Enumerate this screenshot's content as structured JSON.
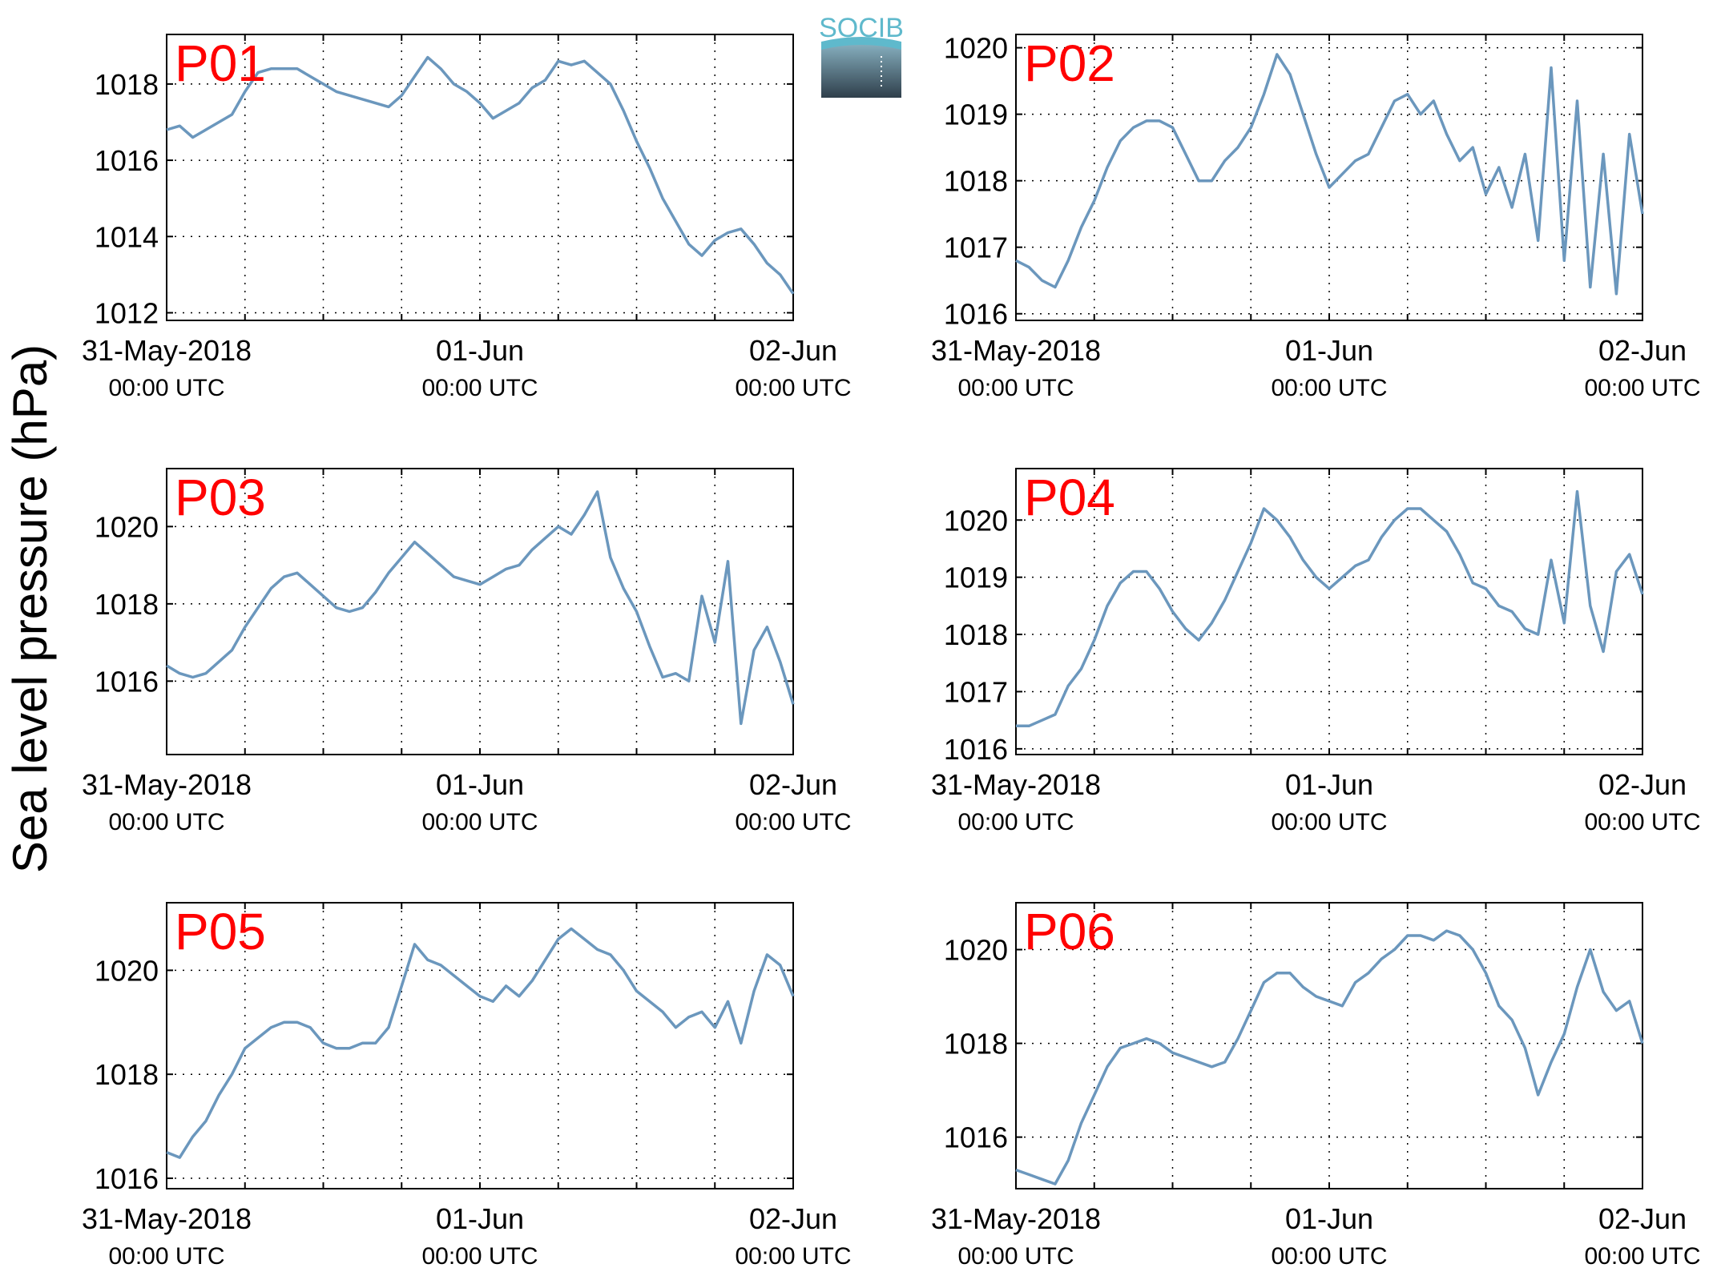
{
  "figure": {
    "ylabel": "Sea level pressure (hPa)",
    "logo_text": "SOCIB",
    "line_color": "#6b97bd",
    "label_color": "#ff0000"
  },
  "chart_data": [
    {
      "type": "line",
      "title": "P01",
      "xlabels": [
        "31-May-2018",
        "01-Jun",
        "02-Jun"
      ],
      "xsublabels": [
        "00:00 UTC",
        "00:00 UTC",
        "00:00 UTC"
      ],
      "xlim": [
        0,
        48
      ],
      "ylim": [
        1011.8,
        1019.3
      ],
      "yticks": [
        1012,
        1014,
        1016,
        1018
      ],
      "grid": true,
      "x": [
        0,
        1,
        2,
        3,
        4,
        5,
        6,
        7,
        8,
        9,
        10,
        11,
        12,
        13,
        14,
        15,
        16,
        17,
        18,
        19,
        20,
        21,
        22,
        23,
        24,
        25,
        26,
        27,
        28,
        29,
        30,
        31,
        32,
        33,
        34,
        35,
        36,
        37,
        38,
        39,
        40,
        41,
        42,
        43,
        44,
        45,
        46,
        47,
        48
      ],
      "y": [
        1016.8,
        1016.9,
        1016.6,
        1016.8,
        1017.0,
        1017.2,
        1017.8,
        1018.3,
        1018.4,
        1018.4,
        1018.4,
        1018.2,
        1018.0,
        1017.8,
        1017.7,
        1017.6,
        1017.5,
        1017.4,
        1017.7,
        1018.2,
        1018.7,
        1018.4,
        1018.0,
        1017.8,
        1017.5,
        1017.1,
        1017.3,
        1017.5,
        1017.9,
        1018.1,
        1018.6,
        1018.5,
        1018.6,
        1018.3,
        1018.0,
        1017.3,
        1016.5,
        1015.8,
        1015.0,
        1014.4,
        1013.8,
        1013.5,
        1013.9,
        1014.1,
        1014.2,
        1013.8,
        1013.3,
        1013.0,
        1012.5
      ]
    },
    {
      "type": "line",
      "title": "P02",
      "xlabels": [
        "31-May-2018",
        "01-Jun",
        "02-Jun"
      ],
      "xsublabels": [
        "00:00 UTC",
        "00:00 UTC",
        "00:00 UTC"
      ],
      "xlim": [
        0,
        48
      ],
      "ylim": [
        1015.9,
        1020.2
      ],
      "yticks": [
        1016,
        1017,
        1018,
        1019,
        1020
      ],
      "grid": true,
      "x": [
        0,
        1,
        2,
        3,
        4,
        5,
        6,
        7,
        8,
        9,
        10,
        11,
        12,
        13,
        14,
        15,
        16,
        17,
        18,
        19,
        20,
        21,
        22,
        23,
        24,
        25,
        26,
        27,
        28,
        29,
        30,
        31,
        32,
        33,
        34,
        35,
        36,
        37,
        38,
        39,
        40,
        41,
        42,
        43,
        44,
        45,
        46,
        47,
        48
      ],
      "y": [
        1016.8,
        1016.7,
        1016.5,
        1016.4,
        1016.8,
        1017.3,
        1017.7,
        1018.2,
        1018.6,
        1018.8,
        1018.9,
        1018.9,
        1018.8,
        1018.4,
        1018.0,
        1018.0,
        1018.3,
        1018.5,
        1018.8,
        1019.3,
        1019.9,
        1019.6,
        1019.0,
        1018.4,
        1017.9,
        1018.1,
        1018.3,
        1018.4,
        1018.8,
        1019.2,
        1019.3,
        1019.0,
        1019.2,
        1018.7,
        1018.3,
        1018.5,
        1017.8,
        1018.2,
        1017.6,
        1018.4,
        1017.1,
        1019.7,
        1016.8,
        1019.2,
        1016.4,
        1018.4,
        1016.3,
        1018.7,
        1017.5
      ]
    },
    {
      "type": "line",
      "title": "P03",
      "xlabels": [
        "31-May-2018",
        "01-Jun",
        "02-Jun"
      ],
      "xsublabels": [
        "00:00 UTC",
        "00:00 UTC",
        "00:00 UTC"
      ],
      "xlim": [
        0,
        48
      ],
      "ylim": [
        1014.1,
        1021.5
      ],
      "yticks": [
        1016,
        1018,
        1020
      ],
      "grid": true,
      "x": [
        0,
        1,
        2,
        3,
        4,
        5,
        6,
        7,
        8,
        9,
        10,
        11,
        12,
        13,
        14,
        15,
        16,
        17,
        18,
        19,
        20,
        21,
        22,
        23,
        24,
        25,
        26,
        27,
        28,
        29,
        30,
        31,
        32,
        33,
        34,
        35,
        36,
        37,
        38,
        39,
        40,
        41,
        42,
        43,
        44,
        45,
        46,
        47,
        48
      ],
      "y": [
        1016.4,
        1016.2,
        1016.1,
        1016.2,
        1016.5,
        1016.8,
        1017.4,
        1017.9,
        1018.4,
        1018.7,
        1018.8,
        1018.5,
        1018.2,
        1017.9,
        1017.8,
        1017.9,
        1018.3,
        1018.8,
        1019.2,
        1019.6,
        1019.3,
        1019.0,
        1018.7,
        1018.6,
        1018.5,
        1018.7,
        1018.9,
        1019.0,
        1019.4,
        1019.7,
        1020.0,
        1019.8,
        1020.3,
        1020.9,
        1019.2,
        1018.4,
        1017.8,
        1016.9,
        1016.1,
        1016.2,
        1016.0,
        1018.2,
        1017.0,
        1019.1,
        1014.9,
        1016.8,
        1017.4,
        1016.5,
        1015.4
      ]
    },
    {
      "type": "line",
      "title": "P04",
      "xlabels": [
        "31-May-2018",
        "01-Jun",
        "02-Jun"
      ],
      "xsublabels": [
        "00:00 UTC",
        "00:00 UTC",
        "00:00 UTC"
      ],
      "xlim": [
        0,
        48
      ],
      "ylim": [
        1015.9,
        1020.9
      ],
      "yticks": [
        1016,
        1017,
        1018,
        1019,
        1020
      ],
      "grid": true,
      "x": [
        0,
        1,
        2,
        3,
        4,
        5,
        6,
        7,
        8,
        9,
        10,
        11,
        12,
        13,
        14,
        15,
        16,
        17,
        18,
        19,
        20,
        21,
        22,
        23,
        24,
        25,
        26,
        27,
        28,
        29,
        30,
        31,
        32,
        33,
        34,
        35,
        36,
        37,
        38,
        39,
        40,
        41,
        42,
        43,
        44,
        45,
        46,
        47,
        48
      ],
      "y": [
        1016.4,
        1016.4,
        1016.5,
        1016.6,
        1017.1,
        1017.4,
        1017.9,
        1018.5,
        1018.9,
        1019.1,
        1019.1,
        1018.8,
        1018.4,
        1018.1,
        1017.9,
        1018.2,
        1018.6,
        1019.1,
        1019.6,
        1020.2,
        1020.0,
        1019.7,
        1019.3,
        1019.0,
        1018.8,
        1019.0,
        1019.2,
        1019.3,
        1019.7,
        1020.0,
        1020.2,
        1020.2,
        1020.0,
        1019.8,
        1019.4,
        1018.9,
        1018.8,
        1018.5,
        1018.4,
        1018.1,
        1018.0,
        1019.3,
        1018.2,
        1020.5,
        1018.5,
        1017.7,
        1019.1,
        1019.4,
        1018.7
      ]
    },
    {
      "type": "line",
      "title": "P05",
      "xlabels": [
        "31-May-2018",
        "01-Jun",
        "02-Jun"
      ],
      "xsublabels": [
        "00:00 UTC",
        "00:00 UTC",
        "00:00 UTC"
      ],
      "xlim": [
        0,
        48
      ],
      "ylim": [
        1015.8,
        1021.3
      ],
      "yticks": [
        1016,
        1018,
        1020
      ],
      "grid": true,
      "x": [
        0,
        1,
        2,
        3,
        4,
        5,
        6,
        7,
        8,
        9,
        10,
        11,
        12,
        13,
        14,
        15,
        16,
        17,
        18,
        19,
        20,
        21,
        22,
        23,
        24,
        25,
        26,
        27,
        28,
        29,
        30,
        31,
        32,
        33,
        34,
        35,
        36,
        37,
        38,
        39,
        40,
        41,
        42,
        43,
        44,
        45,
        46,
        47,
        48
      ],
      "y": [
        1016.5,
        1016.4,
        1016.8,
        1017.1,
        1017.6,
        1018.0,
        1018.5,
        1018.7,
        1018.9,
        1019.0,
        1019.0,
        1018.9,
        1018.6,
        1018.5,
        1018.5,
        1018.6,
        1018.6,
        1018.9,
        1019.7,
        1020.5,
        1020.2,
        1020.1,
        1019.9,
        1019.7,
        1019.5,
        1019.4,
        1019.7,
        1019.5,
        1019.8,
        1020.2,
        1020.6,
        1020.8,
        1020.6,
        1020.4,
        1020.3,
        1020.0,
        1019.6,
        1019.4,
        1019.2,
        1018.9,
        1019.1,
        1019.2,
        1018.9,
        1019.4,
        1018.6,
        1019.6,
        1020.3,
        1020.1,
        1019.5
      ]
    },
    {
      "type": "line",
      "title": "P06",
      "xlabels": [
        "31-May-2018",
        "01-Jun",
        "02-Jun"
      ],
      "xsublabels": [
        "00:00 UTC",
        "00:00 UTC",
        "00:00 UTC"
      ],
      "xlim": [
        0,
        48
      ],
      "ylim": [
        1014.9,
        1021.0
      ],
      "yticks": [
        1016,
        1018,
        1020
      ],
      "grid": true,
      "x": [
        0,
        1,
        2,
        3,
        4,
        5,
        6,
        7,
        8,
        9,
        10,
        11,
        12,
        13,
        14,
        15,
        16,
        17,
        18,
        19,
        20,
        21,
        22,
        23,
        24,
        25,
        26,
        27,
        28,
        29,
        30,
        31,
        32,
        33,
        34,
        35,
        36,
        37,
        38,
        39,
        40,
        41,
        42,
        43,
        44,
        45,
        46,
        47,
        48
      ],
      "y": [
        1015.3,
        1015.2,
        1015.1,
        1015.0,
        1015.5,
        1016.3,
        1016.9,
        1017.5,
        1017.9,
        1018.0,
        1018.1,
        1018.0,
        1017.8,
        1017.7,
        1017.6,
        1017.5,
        1017.6,
        1018.1,
        1018.7,
        1019.3,
        1019.5,
        1019.5,
        1019.2,
        1019.0,
        1018.9,
        1018.8,
        1019.3,
        1019.5,
        1019.8,
        1020.0,
        1020.3,
        1020.3,
        1020.2,
        1020.4,
        1020.3,
        1020.0,
        1019.5,
        1018.8,
        1018.5,
        1017.9,
        1016.9,
        1017.6,
        1018.2,
        1019.2,
        1020.0,
        1019.1,
        1018.7,
        1018.9,
        1018.0
      ]
    }
  ]
}
